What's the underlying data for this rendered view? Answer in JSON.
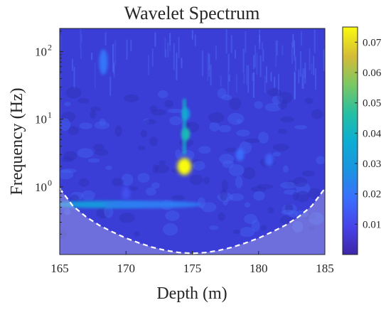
{
  "chart_data": {
    "type": "heatmap",
    "title": "Wavelet Spectrum",
    "xlabel": "Depth (m)",
    "ylabel": "Frequency (Hz)",
    "xlim": [
      165,
      185
    ],
    "ylim": [
      0.1,
      220
    ],
    "yscale": "log",
    "x_ticks": [
      165,
      170,
      175,
      180,
      185
    ],
    "y_ticks": [
      {
        "value": 1,
        "base": "10",
        "exp": "0"
      },
      {
        "value": 10,
        "base": "10",
        "exp": "1"
      },
      {
        "value": 100,
        "base": "10",
        "exp": "2"
      }
    ],
    "colorbar": {
      "range": [
        0,
        0.075
      ],
      "ticks": [
        "0.01",
        "0.02",
        "0.03",
        "0.04",
        "0.05",
        "0.06",
        "0.07"
      ],
      "tick_values": [
        0.01,
        0.02,
        0.03,
        0.04,
        0.05,
        0.06,
        0.07
      ],
      "colormap": "parula"
    },
    "cone_of_influence": {
      "style": "white dashed",
      "points": [
        {
          "x": 165,
          "y": 0.95
        },
        {
          "x": 166,
          "y": 0.52
        },
        {
          "x": 167,
          "y": 0.36
        },
        {
          "x": 168,
          "y": 0.27
        },
        {
          "x": 169,
          "y": 0.215
        },
        {
          "x": 170,
          "y": 0.175
        },
        {
          "x": 171,
          "y": 0.148
        },
        {
          "x": 172,
          "y": 0.128
        },
        {
          "x": 173,
          "y": 0.115
        },
        {
          "x": 174,
          "y": 0.107
        },
        {
          "x": 175,
          "y": 0.104
        },
        {
          "x": 176,
          "y": 0.107
        },
        {
          "x": 177,
          "y": 0.115
        },
        {
          "x": 178,
          "y": 0.128
        },
        {
          "x": 179,
          "y": 0.148
        },
        {
          "x": 180,
          "y": 0.175
        },
        {
          "x": 181,
          "y": 0.215
        },
        {
          "x": 182,
          "y": 0.27
        },
        {
          "x": 183,
          "y": 0.36
        },
        {
          "x": 184,
          "y": 0.52
        },
        {
          "x": 185,
          "y": 0.95
        }
      ]
    },
    "features": [
      {
        "x": 174.4,
        "y": 2.0,
        "value": 0.075
      },
      {
        "x": 174.5,
        "y": 6.0,
        "value": 0.045
      },
      {
        "x": 174.5,
        "y": 12.0,
        "value": 0.03
      },
      {
        "x": 168.3,
        "y": 70.0,
        "value": 0.02
      },
      {
        "x": 168.0,
        "y": 0.55,
        "value": 0.03
      },
      {
        "x": 172.0,
        "y": 0.55,
        "value": 0.022
      },
      {
        "x": 170.0,
        "y": 0.8,
        "value": 0.012
      },
      {
        "x": 178.6,
        "y": 3.0,
        "value": 0.018
      },
      {
        "x": 180.8,
        "y": 2.5,
        "value": 0.015
      }
    ]
  }
}
